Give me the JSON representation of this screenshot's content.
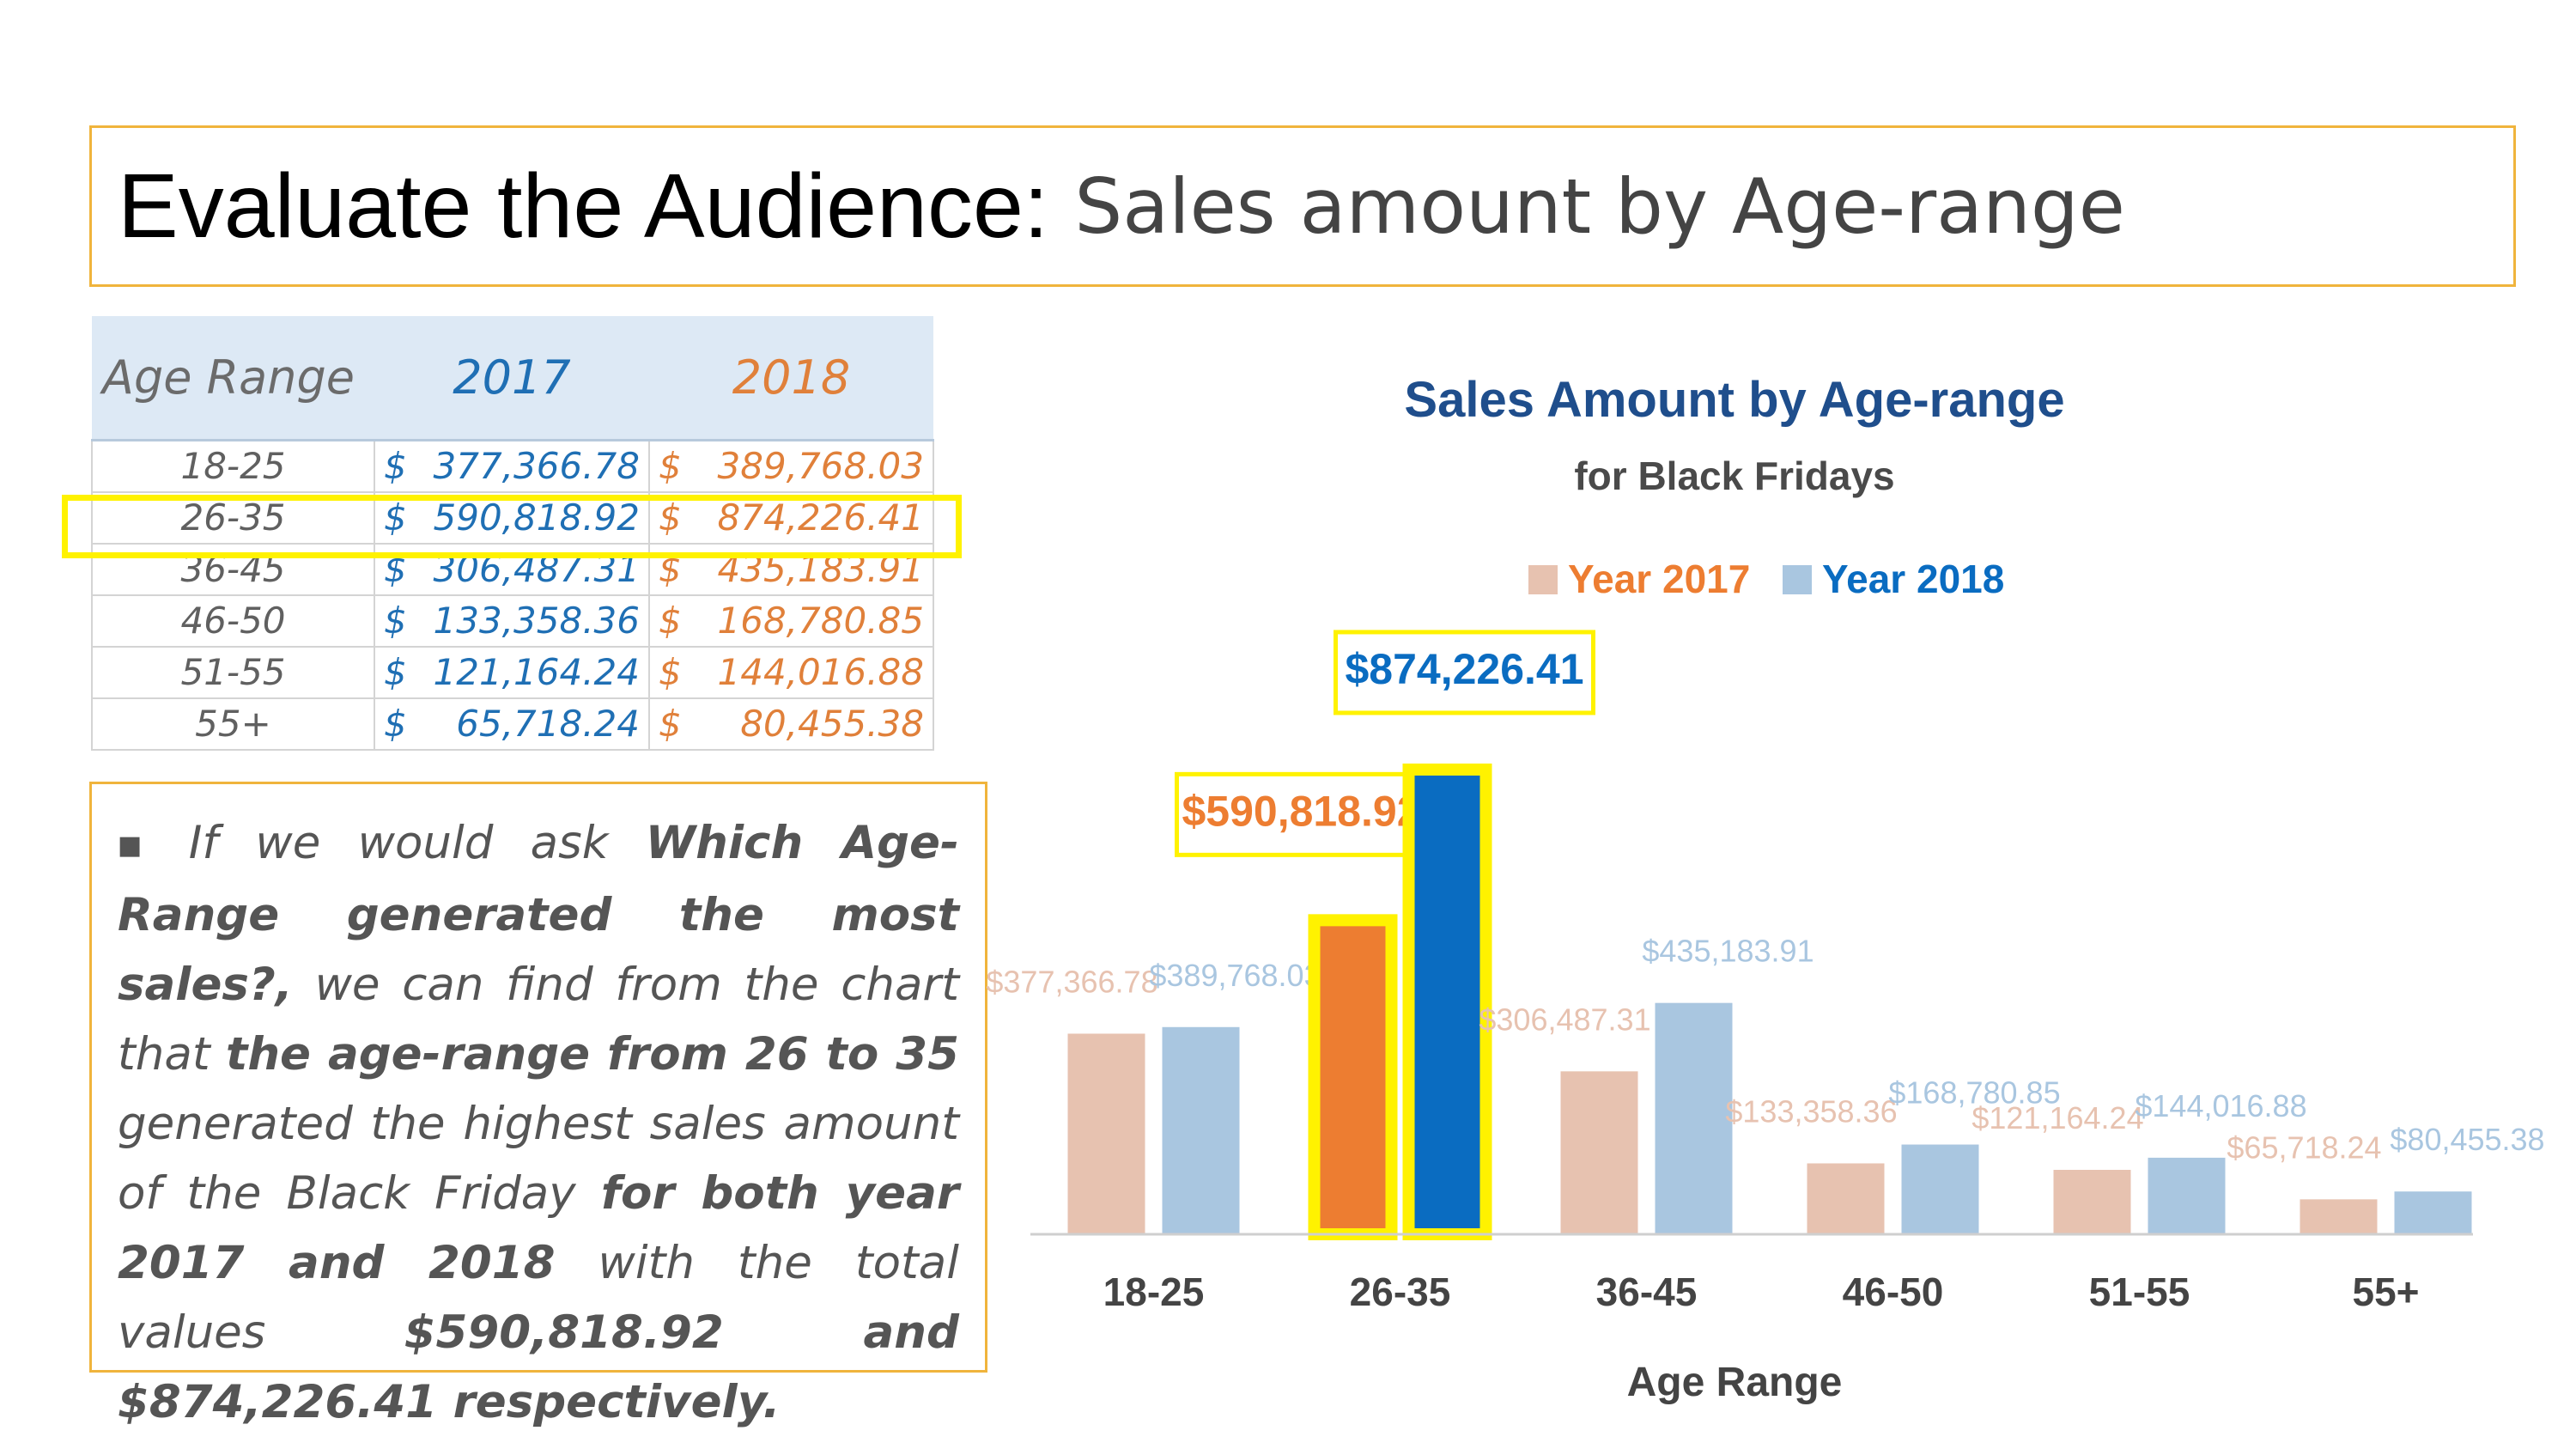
{
  "slide": {
    "title_main": "Evaluate the Audience:",
    "title_sub": "Sales amount by Age-range"
  },
  "table": {
    "headers": [
      "Age Range",
      "2017",
      "2018"
    ],
    "rows": [
      {
        "age": "18-25",
        "v2017": "377,366.78",
        "v2018": "389,768.03"
      },
      {
        "age": "26-35",
        "v2017": "590,818.92",
        "v2018": "874,226.41"
      },
      {
        "age": "36-45",
        "v2017": "306,487.31",
        "v2018": "435,183.91"
      },
      {
        "age": "46-50",
        "v2017": "133,358.36",
        "v2018": "168,780.85"
      },
      {
        "age": "51-55",
        "v2017": "121,164.24",
        "v2018": "144,016.88"
      },
      {
        "age": "55+",
        "v2017": "65,718.24",
        "v2018": "80,455.38"
      }
    ],
    "currency_symbol": "$",
    "highlighted_row": "26-35"
  },
  "note": {
    "p1": "If we would ask ",
    "b1": "Which Age-Range generated the most sales?,",
    "p2": " we can find from the chart that ",
    "b2": "the age-range from 26 to 35",
    "p3": " generated the highest sales amount of the Black Friday ",
    "b3": "for both year 2017 and 2018",
    "p4": " with the total values ",
    "b4": "$590,818.92 and $874,226.41 respectively."
  },
  "chart_data": {
    "type": "bar",
    "title": "Sales Amount by Age-range",
    "subtitle": "for Black Fridays",
    "xlabel": "Age Range",
    "ylabel": "",
    "categories": [
      "18-25",
      "26-35",
      "36-45",
      "46-50",
      "51-55",
      "55+"
    ],
    "series": [
      {
        "name": "Year 2017",
        "values": [
          377366.78,
          590818.92,
          306487.31,
          133358.36,
          121164.24,
          65718.24
        ],
        "labels": [
          "$377,366.78",
          "$590,818.92",
          "$306,487.31",
          "$133,358.36",
          "$121,164.24",
          "$65,718.24"
        ],
        "color": "#e7c2b0",
        "highlight_color": "#ed7d31"
      },
      {
        "name": "Year 2018",
        "values": [
          389768.03,
          874226.41,
          435183.91,
          168780.85,
          144016.88,
          80455.38
        ],
        "labels": [
          "$389,768.03",
          "$874,226.41",
          "$435,183.91",
          "$168,780.85",
          "$144,016.88",
          "$80,455.38"
        ],
        "color": "#a9c6e0",
        "highlight_color": "#0a6cc1"
      }
    ],
    "highlighted_category": "26-35",
    "ylim": [
      0,
      900000
    ],
    "grid": false,
    "legend": "top"
  }
}
